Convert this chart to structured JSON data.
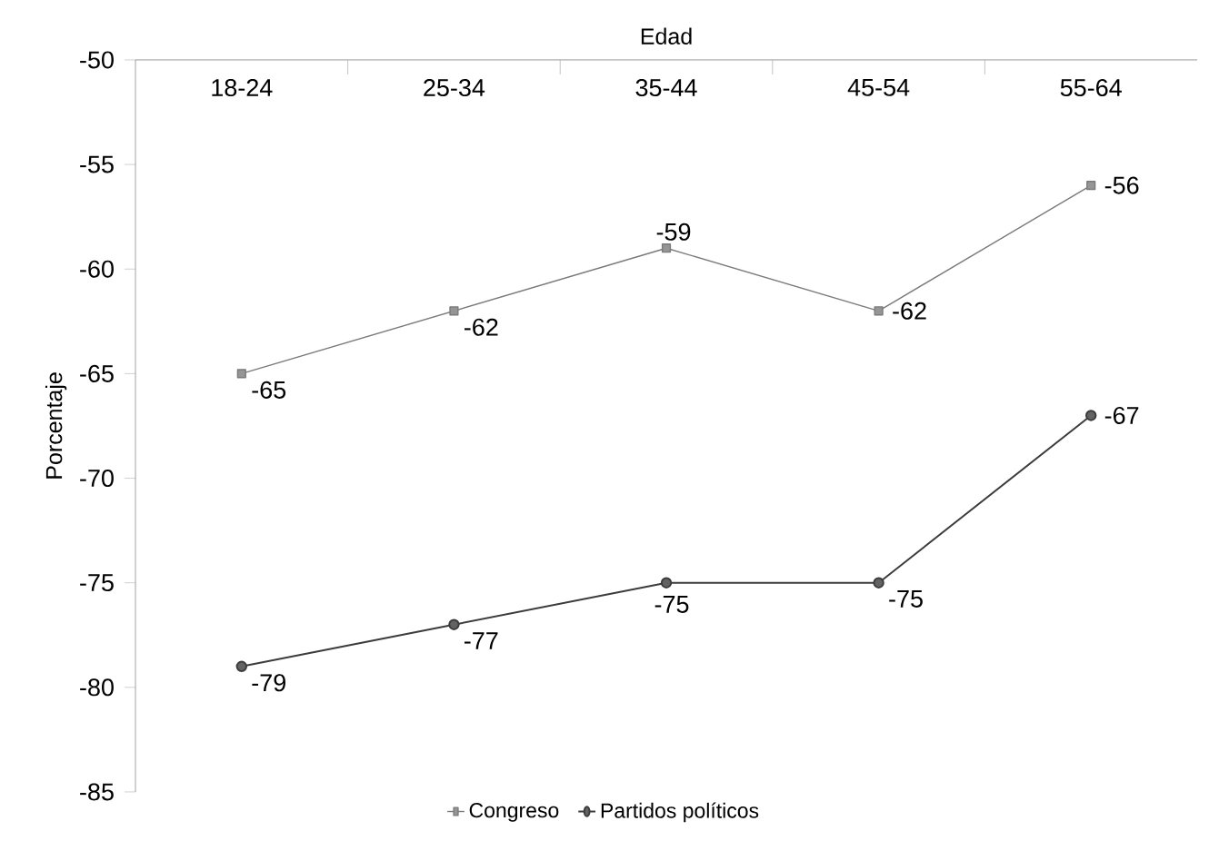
{
  "chart_data": {
    "type": "line",
    "xlabel": "Edad",
    "ylabel": "Porcentaje",
    "categories": [
      "18-24",
      "25-34",
      "35-44",
      "45-54",
      "55-64"
    ],
    "series": [
      {
        "name": "Congreso",
        "color": "#7a7a7a",
        "marker": "square",
        "values": [
          -65,
          -62,
          -59,
          -62,
          -56
        ]
      },
      {
        "name": "Partidos políticos",
        "color": "#3c3c3c",
        "marker": "circle",
        "values": [
          -79,
          -77,
          -75,
          -75,
          -67
        ]
      }
    ],
    "ylim": [
      -85,
      -50
    ],
    "yticks": [
      -85,
      -80,
      -75,
      -70,
      -65,
      -60,
      -55,
      -50
    ],
    "data_labels": true,
    "legend": "bottom"
  }
}
